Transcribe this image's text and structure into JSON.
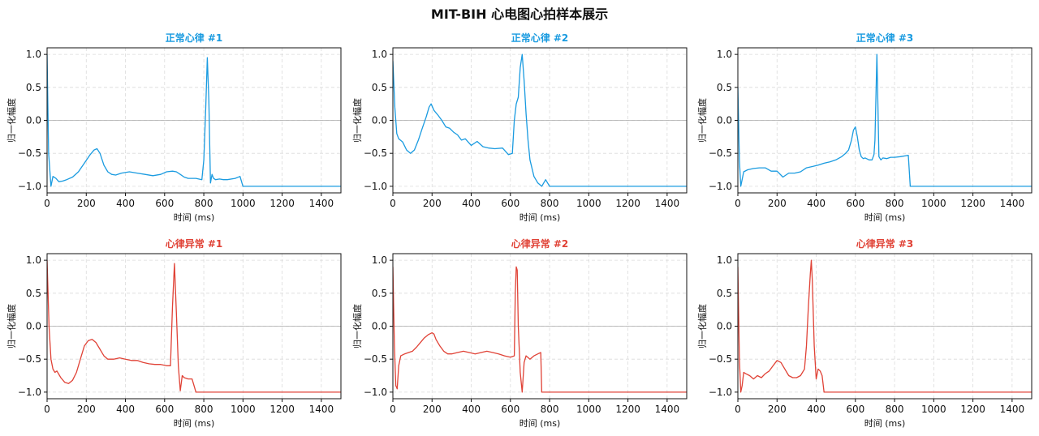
{
  "figure": {
    "title": "MIT-BIH 心电图心拍样本展示"
  },
  "colors": {
    "normal": "#1a9be0",
    "abnormal": "#e04236",
    "grid": "#cccccc",
    "zero_line": "#aaaaaa"
  },
  "chart_data": [
    {
      "type": "line",
      "title": "正常心律 #1",
      "xlabel": "时间 (ms)",
      "ylabel": "归一化幅度",
      "xlim": [
        0,
        1500
      ],
      "ylim": [
        -1.1,
        1.1
      ],
      "xticks": [
        0,
        200,
        400,
        600,
        800,
        1000,
        1200,
        1400
      ],
      "yticks": [
        -1.0,
        -0.5,
        0.0,
        0.5,
        1.0
      ],
      "grid": true,
      "series": [
        {
          "color": "#1a9be0",
          "x": [
            0,
            8,
            20,
            30,
            45,
            60,
            80,
            100,
            130,
            160,
            190,
            220,
            240,
            255,
            270,
            290,
            310,
            330,
            350,
            380,
            420,
            460,
            500,
            540,
            580,
            610,
            640,
            660,
            680,
            700,
            720,
            760,
            790,
            800,
            810,
            818,
            826,
            834,
            842,
            850,
            860,
            880,
            900,
            920,
            960,
            985,
            1000,
            1500
          ],
          "y": [
            1.0,
            -0.5,
            -1.0,
            -0.85,
            -0.88,
            -0.93,
            -0.92,
            -0.9,
            -0.86,
            -0.78,
            -0.65,
            -0.52,
            -0.45,
            -0.43,
            -0.5,
            -0.68,
            -0.78,
            -0.82,
            -0.83,
            -0.8,
            -0.78,
            -0.8,
            -0.82,
            -0.84,
            -0.82,
            -0.78,
            -0.77,
            -0.78,
            -0.82,
            -0.86,
            -0.88,
            -0.88,
            -0.9,
            -0.6,
            0.2,
            0.95,
            0.3,
            -0.95,
            -0.82,
            -0.88,
            -0.9,
            -0.89,
            -0.9,
            -0.9,
            -0.88,
            -0.85,
            -1.0,
            -1.0
          ]
        }
      ]
    },
    {
      "type": "line",
      "title": "正常心律 #2",
      "xlabel": "时间 (ms)",
      "ylabel": "归一化幅度",
      "xlim": [
        0,
        1500
      ],
      "ylim": [
        -1.1,
        1.1
      ],
      "xticks": [
        0,
        200,
        400,
        600,
        800,
        1000,
        1200,
        1400
      ],
      "yticks": [
        -1.0,
        -0.5,
        0.0,
        0.5,
        1.0
      ],
      "grid": true,
      "series": [
        {
          "color": "#1a9be0",
          "x": [
            0,
            10,
            20,
            30,
            50,
            70,
            90,
            110,
            130,
            150,
            170,
            185,
            195,
            210,
            230,
            250,
            270,
            290,
            310,
            330,
            350,
            370,
            400,
            430,
            460,
            490,
            520,
            560,
            590,
            610,
            620,
            630,
            640,
            650,
            660,
            670,
            680,
            690,
            700,
            720,
            740,
            760,
            780,
            800,
            1500
          ],
          "y": [
            0.9,
            0.2,
            -0.2,
            -0.28,
            -0.33,
            -0.45,
            -0.5,
            -0.45,
            -0.3,
            -0.12,
            0.05,
            0.2,
            0.25,
            0.15,
            0.08,
            0.0,
            -0.1,
            -0.12,
            -0.18,
            -0.22,
            -0.3,
            -0.28,
            -0.38,
            -0.32,
            -0.4,
            -0.42,
            -0.43,
            -0.42,
            -0.52,
            -0.5,
            0.0,
            0.25,
            0.35,
            0.8,
            1.0,
            0.6,
            0.1,
            -0.3,
            -0.6,
            -0.85,
            -0.95,
            -1.0,
            -0.9,
            -1.0,
            -1.0
          ]
        }
      ]
    },
    {
      "type": "line",
      "title": "正常心律 #3",
      "xlabel": "时间 (ms)",
      "ylabel": "归一化幅度",
      "xlim": [
        0,
        1500
      ],
      "ylim": [
        -1.1,
        1.1
      ],
      "xticks": [
        0,
        200,
        400,
        600,
        800,
        1000,
        1200,
        1400
      ],
      "yticks": [
        -1.0,
        -0.5,
        0.0,
        0.5,
        1.0
      ],
      "grid": true,
      "series": [
        {
          "color": "#1a9be0",
          "x": [
            0,
            8,
            15,
            30,
            50,
            80,
            110,
            140,
            170,
            200,
            230,
            260,
            290,
            320,
            350,
            380,
            410,
            440,
            470,
            500,
            530,
            550,
            565,
            580,
            590,
            600,
            610,
            620,
            630,
            640,
            650,
            670,
            685,
            695,
            700,
            710,
            720,
            730,
            740,
            760,
            780,
            800,
            830,
            870,
            880,
            1500
          ],
          "y": [
            0.5,
            -0.6,
            -1.0,
            -0.78,
            -0.75,
            -0.73,
            -0.72,
            -0.72,
            -0.77,
            -0.77,
            -0.86,
            -0.8,
            -0.8,
            -0.78,
            -0.72,
            -0.7,
            -0.68,
            -0.65,
            -0.63,
            -0.6,
            -0.55,
            -0.5,
            -0.45,
            -0.3,
            -0.15,
            -0.1,
            -0.25,
            -0.45,
            -0.55,
            -0.58,
            -0.57,
            -0.6,
            -0.6,
            -0.52,
            -0.3,
            1.0,
            -0.55,
            -0.6,
            -0.57,
            -0.58,
            -0.56,
            -0.56,
            -0.55,
            -0.53,
            -1.0,
            -1.0
          ]
        }
      ]
    },
    {
      "type": "line",
      "title": "心律异常 #1",
      "xlabel": "时间 (ms)",
      "ylabel": "归一化幅度",
      "xlim": [
        0,
        1500
      ],
      "ylim": [
        -1.1,
        1.1
      ],
      "xticks": [
        0,
        200,
        400,
        600,
        800,
        1000,
        1200,
        1400
      ],
      "yticks": [
        -1.0,
        -0.5,
        0.0,
        0.5,
        1.0
      ],
      "grid": true,
      "series": [
        {
          "color": "#e04236",
          "x": [
            0,
            10,
            20,
            30,
            40,
            50,
            70,
            90,
            110,
            130,
            150,
            170,
            190,
            210,
            230,
            250,
            270,
            290,
            310,
            340,
            370,
            400,
            430,
            460,
            490,
            520,
            550,
            580,
            610,
            630,
            640,
            650,
            660,
            670,
            680,
            690,
            700,
            720,
            740,
            760,
            780,
            1500
          ],
          "y": [
            1.0,
            0.0,
            -0.5,
            -0.65,
            -0.7,
            -0.68,
            -0.78,
            -0.85,
            -0.87,
            -0.82,
            -0.7,
            -0.5,
            -0.3,
            -0.22,
            -0.2,
            -0.25,
            -0.35,
            -0.45,
            -0.5,
            -0.5,
            -0.48,
            -0.5,
            -0.52,
            -0.52,
            -0.55,
            -0.57,
            -0.58,
            -0.58,
            -0.6,
            -0.6,
            0.3,
            0.95,
            0.2,
            -0.6,
            -0.98,
            -0.75,
            -0.78,
            -0.8,
            -0.8,
            -1.0,
            -1.0,
            -1.0
          ]
        }
      ]
    },
    {
      "type": "line",
      "title": "心律异常 #2",
      "xlabel": "时间 (ms)",
      "ylabel": "归一化幅度",
      "xlim": [
        0,
        1500
      ],
      "ylim": [
        -1.1,
        1.1
      ],
      "xticks": [
        0,
        200,
        400,
        600,
        800,
        1000,
        1200,
        1400
      ],
      "yticks": [
        -1.0,
        -0.5,
        0.0,
        0.5,
        1.0
      ],
      "grid": true,
      "series": [
        {
          "color": "#e04236",
          "x": [
            0,
            8,
            15,
            22,
            30,
            40,
            60,
            80,
            100,
            120,
            140,
            160,
            180,
            200,
            210,
            220,
            240,
            260,
            280,
            300,
            330,
            360,
            390,
            420,
            450,
            480,
            510,
            540,
            570,
            600,
            620,
            625,
            630,
            635,
            640,
            650,
            660,
            670,
            680,
            700,
            720,
            740,
            755,
            760,
            1500
          ],
          "y": [
            0.9,
            -0.3,
            -0.9,
            -0.95,
            -0.6,
            -0.45,
            -0.42,
            -0.4,
            -0.38,
            -0.32,
            -0.25,
            -0.18,
            -0.13,
            -0.1,
            -0.12,
            -0.2,
            -0.3,
            -0.38,
            -0.42,
            -0.42,
            -0.4,
            -0.38,
            -0.4,
            -0.42,
            -0.4,
            -0.38,
            -0.4,
            -0.42,
            -0.45,
            -0.47,
            -0.45,
            0.5,
            0.9,
            0.85,
            0.0,
            -0.7,
            -1.0,
            -0.55,
            -0.45,
            -0.5,
            -0.45,
            -0.42,
            -0.4,
            -1.0,
            -1.0
          ]
        }
      ]
    },
    {
      "type": "line",
      "title": "心律异常 #3",
      "xlabel": "时间 (ms)",
      "ylabel": "归一化幅度",
      "xlim": [
        0,
        1500
      ],
      "ylim": [
        -1.1,
        1.1
      ],
      "xticks": [
        0,
        200,
        400,
        600,
        800,
        1000,
        1200,
        1400
      ],
      "yticks": [
        -1.0,
        -0.5,
        0.0,
        0.5,
        1.0
      ],
      "grid": true,
      "series": [
        {
          "color": "#e04236",
          "x": [
            0,
            8,
            15,
            22,
            30,
            40,
            60,
            80,
            100,
            120,
            140,
            160,
            180,
            200,
            220,
            240,
            260,
            280,
            300,
            320,
            340,
            350,
            360,
            370,
            375,
            380,
            390,
            400,
            410,
            420,
            430,
            440,
            460,
            470,
            1500
          ],
          "y": [
            0.9,
            -0.5,
            -1.0,
            -0.9,
            -0.7,
            -0.72,
            -0.75,
            -0.8,
            -0.75,
            -0.78,
            -0.72,
            -0.68,
            -0.6,
            -0.52,
            -0.55,
            -0.65,
            -0.75,
            -0.78,
            -0.78,
            -0.75,
            -0.65,
            -0.3,
            0.3,
            0.8,
            1.0,
            0.7,
            -0.3,
            -0.8,
            -0.65,
            -0.68,
            -0.75,
            -1.0,
            -1.0,
            -1.0,
            -1.0
          ]
        }
      ]
    }
  ]
}
